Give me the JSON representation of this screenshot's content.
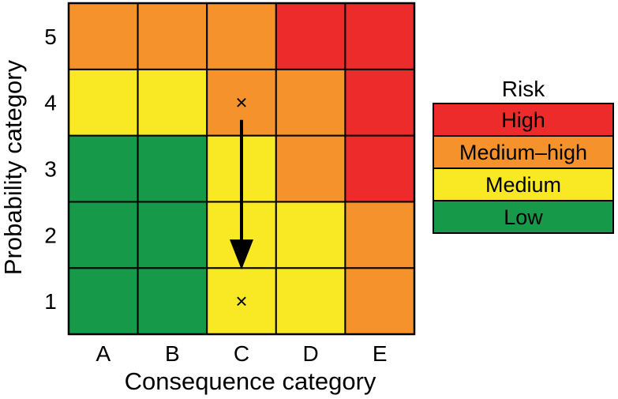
{
  "chart_data": {
    "type": "heatmap",
    "xlabel": "Consequence category",
    "ylabel": "Probability category",
    "x_categories": [
      "A",
      "B",
      "C",
      "D",
      "E"
    ],
    "y_categories": [
      "1",
      "2",
      "3",
      "4",
      "5"
    ],
    "grid": [
      [
        "Low",
        "Low",
        "Medium",
        "Medium",
        "Medium-high"
      ],
      [
        "Low",
        "Low",
        "Medium",
        "Medium",
        "Medium-high"
      ],
      [
        "Low",
        "Low",
        "Medium",
        "Medium-high",
        "High"
      ],
      [
        "Medium",
        "Medium",
        "Medium-high",
        "Medium-high",
        "High"
      ],
      [
        "Medium-high",
        "Medium-high",
        "Medium-high",
        "High",
        "High"
      ]
    ],
    "markers": [
      {
        "x": "C",
        "y": "4",
        "symbol": "×"
      },
      {
        "x": "C",
        "y": "1",
        "symbol": "×"
      }
    ],
    "arrow": {
      "from": {
        "x": "C",
        "y": "4"
      },
      "to": {
        "x": "C",
        "y": "1"
      }
    },
    "colors": {
      "High": "#ee2b2b",
      "Medium-high": "#f6922c",
      "Medium": "#f8e924",
      "Low": "#169a4a"
    }
  },
  "legend": {
    "title": "Risk",
    "items": [
      {
        "label": "High",
        "level": "High"
      },
      {
        "label": "Medium–high",
        "level": "Medium-high"
      },
      {
        "label": "Medium",
        "level": "Medium"
      },
      {
        "label": "Low",
        "level": "Low"
      }
    ]
  }
}
